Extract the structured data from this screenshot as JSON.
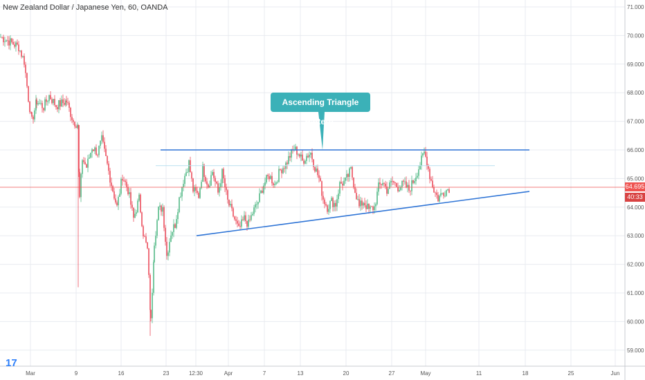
{
  "header": {
    "title": "New Zealand Dollar / Japanese Yen, 60, OANDA"
  },
  "annotation": {
    "text": "Ascending Triangle Pattern."
  },
  "branding": {
    "logo": "17"
  },
  "price_label": {
    "last_price": "64.695",
    "countdown": "40:33"
  },
  "colors": {
    "background": "#ffffff",
    "grid": "#e8ebf0",
    "up_candle": "#53b987",
    "down_candle": "#eb4d5c",
    "trendline": "#2e74d6",
    "price_line": "#ef5350",
    "callout": "#3bb1b8",
    "axis_text": "#555555"
  },
  "chart_data": {
    "type": "candlestick",
    "title": "New Zealand Dollar / Japanese Yen, 60, OANDA",
    "y_axis": {
      "position": "right",
      "ticks": [
        "71.000",
        "70.000",
        "69.000",
        "68.000",
        "67.000",
        "66.000",
        "65.000",
        "64.000",
        "63.000",
        "62.000",
        "61.000",
        "60.000",
        "59.000"
      ],
      "range": [
        58.6,
        71.2
      ]
    },
    "x_axis": {
      "ticks": [
        "Mar",
        "9",
        "16",
        "23",
        "12:30",
        "Apr",
        "7",
        "13",
        "20",
        "27",
        "May",
        "11",
        "18",
        "25",
        "Jun"
      ]
    },
    "grid": true,
    "last_price": 64.695,
    "price_path": [
      {
        "x": 0,
        "y": 69.95
      },
      {
        "x": 12,
        "y": 69.8
      },
      {
        "x": 26,
        "y": 69.6
      },
      {
        "x": 34,
        "y": 69.1
      },
      {
        "x": 40,
        "y": 67.8
      },
      {
        "x": 45,
        "y": 67.0
      },
      {
        "x": 52,
        "y": 67.7
      },
      {
        "x": 62,
        "y": 67.5
      },
      {
        "x": 70,
        "y": 67.9
      },
      {
        "x": 80,
        "y": 67.55
      },
      {
        "x": 95,
        "y": 67.7
      },
      {
        "x": 105,
        "y": 67.0
      },
      {
        "x": 111,
        "y": 66.9
      },
      {
        "x": 114,
        "y": 64.3
      },
      {
        "x": 118,
        "y": 65.7
      },
      {
        "x": 124,
        "y": 65.4
      },
      {
        "x": 132,
        "y": 66.1
      },
      {
        "x": 140,
        "y": 65.9
      },
      {
        "x": 146,
        "y": 66.35
      },
      {
        "x": 152,
        "y": 65.7
      },
      {
        "x": 160,
        "y": 64.8
      },
      {
        "x": 168,
        "y": 64.0
      },
      {
        "x": 176,
        "y": 65.1
      },
      {
        "x": 184,
        "y": 64.6
      },
      {
        "x": 192,
        "y": 63.6
      },
      {
        "x": 200,
        "y": 64.3
      },
      {
        "x": 206,
        "y": 63.1
      },
      {
        "x": 212,
        "y": 62.5
      },
      {
        "x": 217,
        "y": 60.0
      },
      {
        "x": 222,
        "y": 62.8
      },
      {
        "x": 228,
        "y": 63.9
      },
      {
        "x": 234,
        "y": 64.0
      },
      {
        "x": 240,
        "y": 62.3
      },
      {
        "x": 246,
        "y": 63.1
      },
      {
        "x": 252,
        "y": 63.4
      },
      {
        "x": 258,
        "y": 64.3
      },
      {
        "x": 264,
        "y": 64.95
      },
      {
        "x": 272,
        "y": 65.55
      },
      {
        "x": 278,
        "y": 64.6
      },
      {
        "x": 286,
        "y": 64.4
      },
      {
        "x": 292,
        "y": 65.35
      },
      {
        "x": 300,
        "y": 64.75
      },
      {
        "x": 306,
        "y": 65.25
      },
      {
        "x": 314,
        "y": 64.5
      },
      {
        "x": 320,
        "y": 65.2
      },
      {
        "x": 328,
        "y": 64.2
      },
      {
        "x": 336,
        "y": 63.7
      },
      {
        "x": 344,
        "y": 63.2
      },
      {
        "x": 352,
        "y": 63.6
      },
      {
        "x": 358,
        "y": 63.4
      },
      {
        "x": 364,
        "y": 63.8
      },
      {
        "x": 372,
        "y": 64.2
      },
      {
        "x": 380,
        "y": 64.8
      },
      {
        "x": 388,
        "y": 65.1
      },
      {
        "x": 396,
        "y": 64.8
      },
      {
        "x": 404,
        "y": 65.3
      },
      {
        "x": 412,
        "y": 65.5
      },
      {
        "x": 418,
        "y": 65.8
      },
      {
        "x": 424,
        "y": 66.05
      },
      {
        "x": 430,
        "y": 65.9
      },
      {
        "x": 436,
        "y": 65.6
      },
      {
        "x": 442,
        "y": 65.8
      },
      {
        "x": 448,
        "y": 65.9
      },
      {
        "x": 454,
        "y": 65.4
      },
      {
        "x": 460,
        "y": 65.0
      },
      {
        "x": 466,
        "y": 64.3
      },
      {
        "x": 472,
        "y": 64.0
      },
      {
        "x": 478,
        "y": 64.2
      },
      {
        "x": 484,
        "y": 64.1
      },
      {
        "x": 490,
        "y": 64.8
      },
      {
        "x": 498,
        "y": 64.9
      },
      {
        "x": 506,
        "y": 65.3
      },
      {
        "x": 512,
        "y": 64.6
      },
      {
        "x": 518,
        "y": 64.0
      },
      {
        "x": 524,
        "y": 64.2
      },
      {
        "x": 532,
        "y": 63.9
      },
      {
        "x": 540,
        "y": 64.0
      },
      {
        "x": 546,
        "y": 64.7
      },
      {
        "x": 552,
        "y": 64.9
      },
      {
        "x": 558,
        "y": 64.6
      },
      {
        "x": 566,
        "y": 64.9
      },
      {
        "x": 574,
        "y": 64.7
      },
      {
        "x": 582,
        "y": 64.8
      },
      {
        "x": 590,
        "y": 64.6
      },
      {
        "x": 598,
        "y": 65.0
      },
      {
        "x": 606,
        "y": 65.5
      },
      {
        "x": 612,
        "y": 65.9
      },
      {
        "x": 616,
        "y": 65.6
      },
      {
        "x": 620,
        "y": 65.1
      },
      {
        "x": 626,
        "y": 64.6
      },
      {
        "x": 632,
        "y": 64.3
      },
      {
        "x": 638,
        "y": 64.5
      },
      {
        "x": 644,
        "y": 64.6
      },
      {
        "x": 649,
        "y": 64.695
      }
    ],
    "annotations": {
      "resistance_line": {
        "x1": 232,
        "x2": 765,
        "y": 66.0
      },
      "inner_resistance": {
        "x1": 225,
        "x2": 715,
        "y": 65.45
      },
      "support_line": {
        "x1": 284,
        "y1": 63.0,
        "x2": 765,
        "y2": 64.55
      },
      "callout_anchor": {
        "x": 466,
        "y": 66.0
      }
    }
  }
}
